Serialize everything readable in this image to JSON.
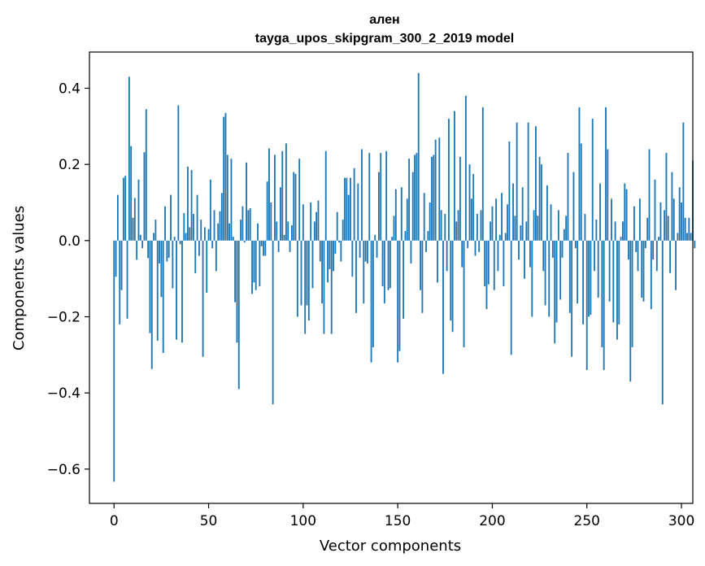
{
  "chart_data": {
    "type": "bar",
    "title": "ален",
    "subtitle": "tayga_upos_skipgram_300_2_2019 model",
    "xlabel": "Vector components",
    "ylabel": "Components values",
    "xlim": [
      -13,
      306
    ],
    "ylim": [
      -0.69,
      0.495
    ],
    "xticks": [
      0,
      50,
      100,
      150,
      200,
      250,
      300
    ],
    "xtick_labels": [
      "0",
      "50",
      "100",
      "150",
      "200",
      "250",
      "300"
    ],
    "yticks": [
      -0.6,
      -0.4,
      -0.2,
      0.0,
      0.2,
      0.4
    ],
    "ytick_labels": [
      "−0.6",
      "−0.4",
      "−0.2",
      "0.0",
      "0.2",
      "0.4"
    ],
    "color": "#1f77b4",
    "grid": false,
    "values": [
      -0.633,
      -0.095,
      0.12,
      -0.22,
      -0.13,
      0.165,
      0.17,
      -0.205,
      0.43,
      0.248,
      0.06,
      0.112,
      -0.05,
      0.16,
      0.015,
      -0.02,
      0.232,
      0.345,
      -0.046,
      -0.243,
      -0.337,
      0.02,
      0.055,
      -0.263,
      -0.06,
      -0.148,
      -0.295,
      0.09,
      -0.055,
      -0.045,
      0.12,
      -0.125,
      0.01,
      -0.26,
      0.355,
      -0.01,
      -0.268,
      0.072,
      0.02,
      0.194,
      0.035,
      0.185,
      0.07,
      -0.086,
      0.12,
      -0.04,
      0.055,
      -0.305,
      0.035,
      -0.137,
      0.03,
      0.16,
      -0.02,
      0.08,
      -0.08,
      0.045,
      0.077,
      0.125,
      0.325,
      0.335,
      0.225,
      0.045,
      0.215,
      0.01,
      -0.162,
      -0.268,
      -0.39,
      0.055,
      0.09,
      -0.005,
      0.205,
      0.08,
      0.085,
      -0.14,
      -0.11,
      -0.13,
      0.045,
      -0.12,
      -0.015,
      -0.04,
      -0.04,
      0.155,
      0.242,
      0.1,
      -0.43,
      0.225,
      0.05,
      -0.03,
      0.14,
      0.235,
      0.015,
      0.255,
      0.05,
      -0.03,
      0.04,
      0.18,
      0.175,
      -0.2,
      0.215,
      -0.17,
      0.095,
      -0.245,
      -0.17,
      -0.21,
      0.1,
      -0.125,
      0.05,
      0.075,
      0.105,
      -0.055,
      -0.165,
      -0.245,
      0.235,
      -0.11,
      -0.075,
      -0.245,
      -0.08,
      -0.035,
      0.075,
      -0.005,
      -0.055,
      0.055,
      0.165,
      0.165,
      0.12,
      0.165,
      -0.095,
      0.19,
      -0.19,
      0.15,
      -0.045,
      0.24,
      -0.165,
      -0.055,
      -0.06,
      0.23,
      -0.32,
      -0.28,
      0.015,
      -0.045,
      0.18,
      0.23,
      -0.12,
      -0.165,
      0.235,
      -0.13,
      -0.125,
      0.01,
      0.065,
      0.135,
      -0.32,
      -0.29,
      0.14,
      -0.205,
      0.025,
      0.11,
      0.215,
      -0.06,
      0.18,
      0.225,
      0.23,
      0.44,
      -0.13,
      -0.19,
      0.125,
      -0.03,
      0.025,
      0.1,
      0.22,
      0.225,
      0.265,
      -0.11,
      0.27,
      0.08,
      -0.35,
      0.07,
      -0.08,
      0.32,
      -0.21,
      -0.24,
      0.34,
      0.05,
      0.08,
      0.22,
      -0.07,
      -0.28,
      0.38,
      -0.02,
      0.2,
      0.11,
      0.175,
      -0.04,
      0.07,
      -0.03,
      0.08,
      0.35,
      -0.12,
      -0.18,
      -0.115,
      0.05,
      0.09,
      -0.13,
      0.11,
      -0.08,
      0.015,
      0.125,
      -0.12,
      0.02,
      0.095,
      0.26,
      -0.3,
      0.15,
      0.065,
      0.31,
      -0.05,
      0.04,
      0.14,
      -0.1,
      0.05,
      0.31,
      -0.07,
      -0.2,
      0.08,
      0.3,
      0.065,
      0.22,
      0.2,
      -0.08,
      -0.17,
      0.145,
      -0.2,
      0.095,
      -0.045,
      -0.27,
      -0.215,
      0.08,
      -0.155,
      -0.045,
      0.03,
      0.065,
      0.23,
      -0.19,
      -0.305,
      0.18,
      -0.02,
      -0.165,
      0.35,
      0.255,
      -0.22,
      0.07,
      -0.34,
      -0.2,
      -0.195,
      0.32,
      -0.08,
      0.055,
      -0.15,
      0.15,
      -0.28,
      -0.34,
      0.35,
      0.24,
      -0.16,
      0.11,
      -0.215,
      0.05,
      -0.26,
      -0.22,
      0.01,
      0.05,
      0.15,
      0.135,
      -0.05,
      -0.37,
      -0.28,
      0.09,
      -0.03,
      -0.08,
      0.11,
      -0.15,
      -0.16,
      -0.02,
      0.06,
      0.24,
      -0.18,
      -0.05,
      0.16,
      -0.08,
      0.01,
      0.1,
      -0.43,
      0.08,
      0.23,
      0.065,
      -0.085,
      0.18,
      0.11,
      -0.13,
      0.02,
      0.14,
      0.1,
      0.31,
      0.06,
      0.02,
      0.06,
      0.02,
      0.21,
      -0.02
    ]
  }
}
